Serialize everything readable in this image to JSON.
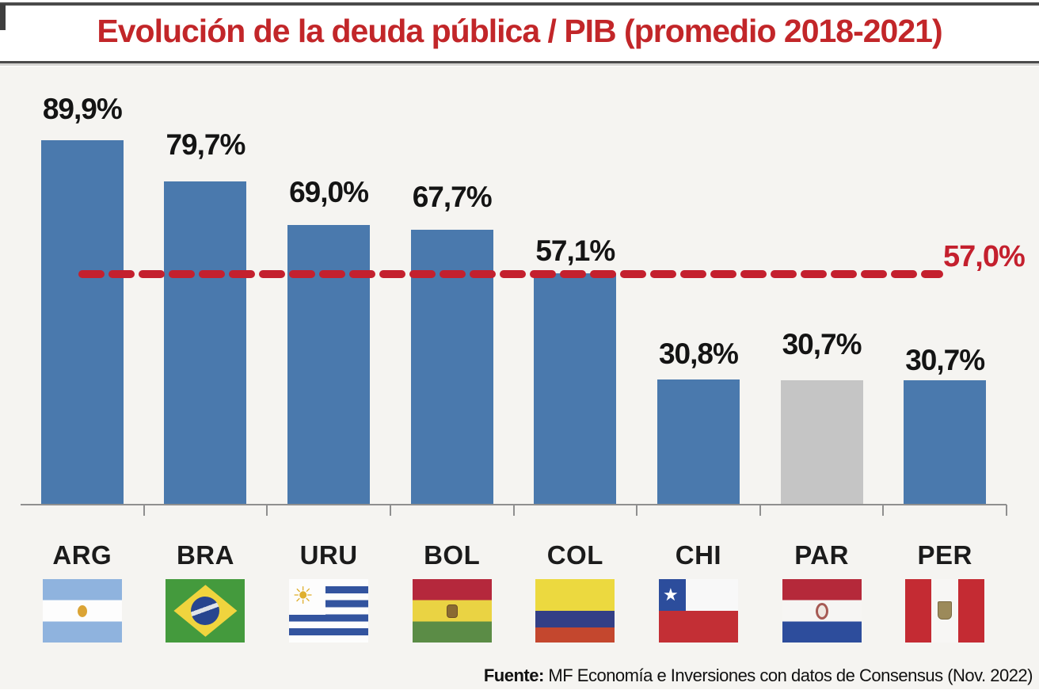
{
  "title": "Evolución de la deuda pública / PIB (promedio 2018-2021)",
  "source": {
    "label": "Fuente:",
    "text": " MF Economía e Inversiones con datos de Consensus (Nov. 2022)"
  },
  "colors": {
    "bar": "#4a79ad",
    "highlight_bar": "#c5c5c5",
    "reference": "#c4202e",
    "title": "#c22629",
    "value_label": "#141414",
    "axis": "#8f8f8f",
    "background": "#f5f4f1"
  },
  "chart_data": {
    "type": "bar",
    "title": "Evolución de la deuda pública / PIB (promedio 2018-2021)",
    "categories": [
      "ARG",
      "BRA",
      "URU",
      "BOL",
      "COL",
      "CHI",
      "PAR",
      "PER"
    ],
    "values": [
      89.9,
      79.7,
      69.0,
      67.7,
      57.1,
      30.8,
      30.7,
      30.7
    ],
    "value_labels": [
      "89,9%",
      "79,7%",
      "69,0%",
      "67,7%",
      "57,1%",
      "30,8%",
      "30,7%",
      "30,7%"
    ],
    "highlighted_category": "PAR",
    "reference_line": {
      "value": 57.0,
      "label": "57,0%",
      "style": "dashed"
    },
    "ylim": [
      0,
      100
    ],
    "grid": false,
    "legend": false,
    "flags": [
      "argentina",
      "brazil",
      "uruguay",
      "bolivia",
      "colombia",
      "chile",
      "paraguay",
      "peru"
    ]
  }
}
